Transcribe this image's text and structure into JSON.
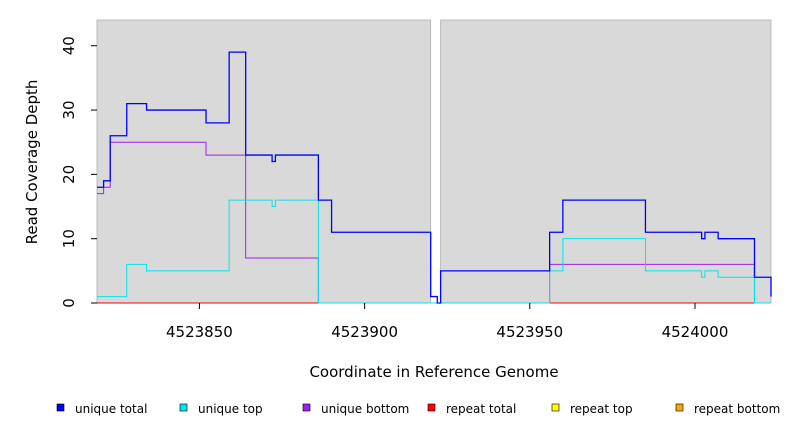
{
  "chart_data": {
    "type": "line",
    "step": true,
    "xlabel": "Coordinate in Reference Genome",
    "ylabel": "Read Coverage Depth",
    "xlim": [
      4523819,
      4524023
    ],
    "ylim": [
      0,
      44
    ],
    "x_ticks": [
      4523850,
      4523900,
      4523950,
      4524000
    ],
    "y_ticks": [
      0,
      10,
      20,
      30,
      40
    ],
    "x_tick_labels": [
      "4523850",
      "4523900",
      "4523950",
      "4524000"
    ],
    "y_tick_labels": [
      "0",
      "10",
      "20",
      "30",
      "40"
    ],
    "grid": false,
    "background": "#d9d9d9",
    "panels": [
      [
        4523819,
        4523920
      ],
      [
        4523923,
        4524023
      ]
    ],
    "legend_position": "bottom",
    "series": [
      {
        "name": "unique total",
        "color": "#0000ff",
        "points": [
          [
            4523819,
            18
          ],
          [
            4523821,
            19
          ],
          [
            4523823,
            26
          ],
          [
            4523828,
            31
          ],
          [
            4523834,
            30
          ],
          [
            4523852,
            28
          ],
          [
            4523859,
            39
          ],
          [
            4523864,
            23
          ],
          [
            4523872,
            22
          ],
          [
            4523873,
            23
          ],
          [
            4523886,
            16
          ],
          [
            4523890,
            11
          ],
          [
            4523920,
            1
          ],
          [
            4523922,
            0
          ],
          [
            4523923,
            5
          ],
          [
            4523956,
            11
          ],
          [
            4523960,
            16
          ],
          [
            4523985,
            11
          ],
          [
            4524002,
            10
          ],
          [
            4524003,
            11
          ],
          [
            4524007,
            10
          ],
          [
            4524018,
            4
          ],
          [
            4524023,
            1
          ]
        ]
      },
      {
        "name": "unique top",
        "color": "#00e5ee",
        "points": [
          [
            4523819,
            1
          ],
          [
            4523828,
            6
          ],
          [
            4523834,
            5
          ],
          [
            4523859,
            16
          ],
          [
            4523872,
            15
          ],
          [
            4523873,
            16
          ],
          [
            4523886,
            0
          ],
          [
            4523956,
            5
          ],
          [
            4523960,
            10
          ],
          [
            4523985,
            5
          ],
          [
            4524002,
            4
          ],
          [
            4524003,
            5
          ],
          [
            4524007,
            4
          ],
          [
            4524018,
            0
          ],
          [
            4524023,
            0
          ]
        ]
      },
      {
        "name": "unique bottom",
        "color": "#a020f0",
        "points": [
          [
            4523819,
            17
          ],
          [
            4523821,
            18
          ],
          [
            4523823,
            25
          ],
          [
            4523852,
            23
          ],
          [
            4523864,
            7
          ],
          [
            4523886,
            0
          ],
          [
            4523956,
            6
          ],
          [
            4524018,
            0
          ],
          [
            4524023,
            0
          ]
        ]
      },
      {
        "name": "repeat total",
        "color": "#ff0000",
        "points": [
          [
            4523819,
            0
          ],
          [
            4524023,
            0
          ]
        ]
      },
      {
        "name": "repeat top",
        "color": "#ffff00",
        "points": [
          [
            4523819,
            0
          ],
          [
            4524023,
            0
          ]
        ]
      },
      {
        "name": "repeat bottom",
        "color": "#ffa500",
        "points": [
          [
            4523819,
            0
          ],
          [
            4524023,
            0
          ]
        ]
      }
    ]
  }
}
